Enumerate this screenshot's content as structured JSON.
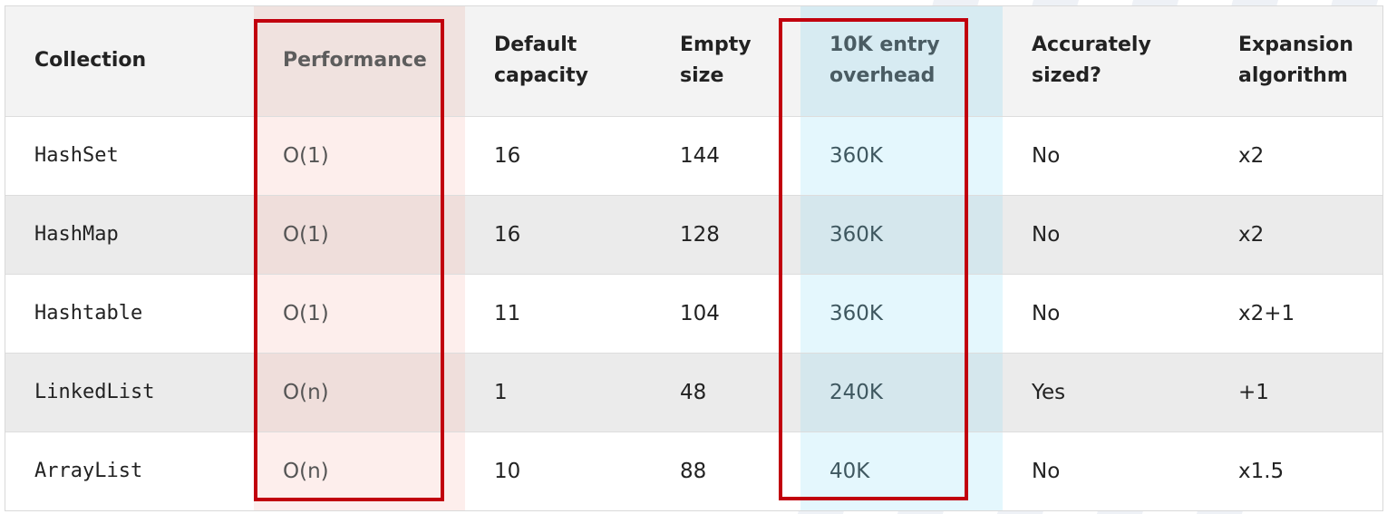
{
  "table": {
    "headers": [
      "Collection",
      "Performance",
      "Default\ncapacity",
      "Empty\nsize",
      "10K entry\noverhead",
      "Accurately\nsized?",
      "Expansion\nalgorithm"
    ],
    "rows": [
      [
        "HashSet",
        "O(1)",
        "16",
        "144",
        "360K",
        "No",
        "x2"
      ],
      [
        "HashMap",
        "O(1)",
        "16",
        "128",
        "360K",
        "No",
        "x2"
      ],
      [
        "Hashtable",
        "O(1)",
        "11",
        "104",
        "360K",
        "No",
        "x2+1"
      ],
      [
        "LinkedList",
        "O(n)",
        "1",
        "48",
        "240K",
        "Yes",
        "+1"
      ],
      [
        "ArrayList",
        "O(n)",
        "10",
        "88",
        "40K",
        "No",
        "x1.5"
      ]
    ]
  },
  "highlights": {
    "performance_color": "#c1000e",
    "overhead_color": "#c1000e",
    "performance_fill": "#fdeeec",
    "overhead_fill": "#e4f7fd"
  }
}
